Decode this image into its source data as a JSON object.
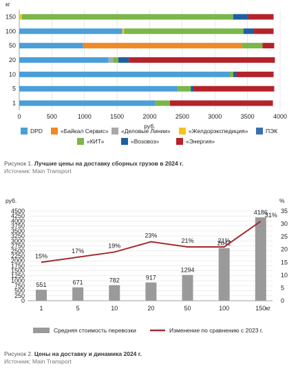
{
  "chart_data": [
    {
      "type": "bar",
      "orientation": "horizontal",
      "stacked": true,
      "unit_label": "кг",
      "xlabel": "руб.",
      "xlim": [
        0,
        4000
      ],
      "xticks": [
        0,
        500,
        1000,
        1500,
        2000,
        2500,
        3000,
        3500,
        4000
      ],
      "categories": [
        "150",
        "100",
        "50",
        "20",
        "10",
        "5",
        "1"
      ],
      "series": [
        {
          "name": "DPD",
          "color": "#4a9fd8",
          "values": [
            0,
            1580,
            980,
            1370,
            3230,
            2430,
            2080
          ]
        },
        {
          "name": "«Байкал Сервис»",
          "color": "#f08a24",
          "values": [
            0,
            0,
            2440,
            0,
            0,
            0,
            0
          ]
        },
        {
          "name": "«Деловые Линии»",
          "color": "#a8a8a8",
          "values": [
            0,
            0,
            0,
            70,
            0,
            0,
            0
          ]
        },
        {
          "name": "«Желдорэкспедиция»",
          "color": "#f7c21b",
          "values": [
            40,
            30,
            0,
            0,
            0,
            0,
            0
          ]
        },
        {
          "name": "«КИТ»",
          "color": "#7ab648",
          "values": [
            3240,
            1830,
            310,
            80,
            50,
            200,
            230
          ]
        },
        {
          "name": "«Возовоз»",
          "color": "#1f5f9e",
          "values": [
            230,
            160,
            0,
            160,
            50,
            40,
            0
          ]
        },
        {
          "name": "«Энергия»",
          "color": "#b5232a",
          "values": [
            390,
            300,
            180,
            2240,
            570,
            1240,
            1580
          ]
        }
      ],
      "legend_position": "bottom",
      "legend_entries": [
        "DPD",
        "«Байкал Сервис»",
        "«Деловые Линии»",
        "«Желдорэкспедиция»",
        "ПЭК",
        "«КИТ»",
        "«Возовоз»",
        "«Энергия»"
      ],
      "legend_colors": [
        "#4a9fd8",
        "#f08a24",
        "#a8a8a8",
        "#f7c21b",
        "#3a6fb0",
        "#7ab648",
        "#1f5f9e",
        "#b5232a"
      ],
      "grid": "vertical"
    },
    {
      "type": "bar+line",
      "categories": [
        "1",
        "5",
        "10",
        "20",
        "50",
        "100",
        "150"
      ],
      "category_unit": "кг",
      "y_left_unit": "руб.",
      "y_right_unit": "%",
      "ylim": [
        0,
        4500
      ],
      "yticks": [
        0,
        250,
        500,
        750,
        1000,
        1250,
        1500,
        1750,
        2000,
        2250,
        2500,
        2750,
        3000,
        3250,
        3500,
        3750,
        4000,
        4250,
        4500
      ],
      "y2lim": [
        0,
        35
      ],
      "y2ticks": [
        0,
        5,
        10,
        15,
        20,
        25,
        30,
        35
      ],
      "series": [
        {
          "name": "Средняя стоимость перевозки",
          "kind": "bar",
          "axis": "left",
          "color": "#9a9a9a",
          "values": [
            551,
            671,
            782,
            917,
            1294,
            2642,
            4186
          ],
          "labels": [
            "551",
            "671",
            "782",
            "917",
            "1294",
            "2642",
            "4186"
          ]
        },
        {
          "name": "Изменение по сравнению с 2023 г.",
          "kind": "line",
          "axis": "right",
          "color": "#a52a2f",
          "values": [
            15,
            17,
            19,
            23,
            21,
            21,
            31
          ],
          "labels": [
            "15%",
            "17%",
            "19%",
            "23%",
            "21%",
            "21%",
            "31%"
          ]
        }
      ],
      "legend_position": "bottom",
      "grid": "horizontal"
    }
  ],
  "captions": {
    "fig1_prefix": "Рисунок 1.",
    "fig1_title": "Лучшие цены на доставку сборных грузов в 2024 г.",
    "fig1_source": "Источник: Main Transport",
    "fig2_prefix": "Рисунок 2.",
    "fig2_title": "Цены на доставку и динамика 2024 г.",
    "fig2_source": "Источник: Main Transport"
  }
}
